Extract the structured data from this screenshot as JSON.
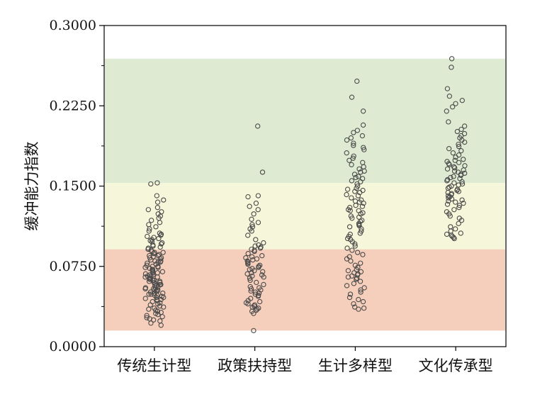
{
  "chart_data": {
    "type": "scatter",
    "title": "",
    "xlabel": "",
    "ylabel": "缓冲能力指数",
    "ylim": [
      0,
      0.3
    ],
    "y_ticks": [
      "0.0000",
      "0.0750",
      "0.1500",
      "0.2250",
      "0.3000"
    ],
    "y_tick_values": [
      0,
      0.075,
      0.15,
      0.225,
      0.3
    ],
    "categories": [
      "传统生计型",
      "政策扶持型",
      "生计多样型",
      "文化传承型"
    ],
    "bands": [
      {
        "from": 0.015,
        "to": 0.091,
        "color": "#f5cfbc"
      },
      {
        "from": 0.091,
        "to": 0.153,
        "color": "#f6f6da"
      },
      {
        "from": 0.153,
        "to": 0.269,
        "color": "#deebd2"
      }
    ],
    "marker_color": "#4a4a4a",
    "series": [
      {
        "category": "传统生计型",
        "values": [
          0.153,
          0.152,
          0.141,
          0.137,
          0.135,
          0.13,
          0.128,
          0.126,
          0.124,
          0.122,
          0.12,
          0.118,
          0.116,
          0.114,
          0.112,
          0.11,
          0.108,
          0.106,
          0.105,
          0.104,
          0.103,
          0.102,
          0.101,
          0.1,
          0.099,
          0.098,
          0.097,
          0.096,
          0.095,
          0.094,
          0.093,
          0.092,
          0.091,
          0.09,
          0.089,
          0.088,
          0.088,
          0.087,
          0.086,
          0.085,
          0.084,
          0.083,
          0.082,
          0.081,
          0.08,
          0.08,
          0.079,
          0.078,
          0.077,
          0.076,
          0.075,
          0.075,
          0.074,
          0.073,
          0.072,
          0.071,
          0.07,
          0.07,
          0.069,
          0.068,
          0.067,
          0.066,
          0.065,
          0.065,
          0.064,
          0.063,
          0.062,
          0.061,
          0.06,
          0.06,
          0.059,
          0.058,
          0.057,
          0.056,
          0.055,
          0.055,
          0.054,
          0.053,
          0.052,
          0.051,
          0.05,
          0.05,
          0.049,
          0.048,
          0.047,
          0.046,
          0.045,
          0.044,
          0.043,
          0.042,
          0.041,
          0.04,
          0.039,
          0.038,
          0.037,
          0.036,
          0.035,
          0.034,
          0.033,
          0.032,
          0.031,
          0.03,
          0.029,
          0.028,
          0.027,
          0.026,
          0.025,
          0.024,
          0.022,
          0.02,
          0.063,
          0.058,
          0.072,
          0.067,
          0.054,
          0.049,
          0.085,
          0.079,
          0.061,
          0.046,
          0.052,
          0.044,
          0.066,
          0.074,
          0.083,
          0.057,
          0.048,
          0.053,
          0.069,
          0.062
        ]
      },
      {
        "category": "政策扶持型",
        "values": [
          0.206,
          0.163,
          0.141,
          0.14,
          0.134,
          0.131,
          0.128,
          0.124,
          0.119,
          0.116,
          0.114,
          0.112,
          0.11,
          0.108,
          0.104,
          0.1,
          0.097,
          0.095,
          0.094,
          0.093,
          0.092,
          0.091,
          0.09,
          0.089,
          0.087,
          0.085,
          0.084,
          0.083,
          0.082,
          0.081,
          0.08,
          0.079,
          0.078,
          0.077,
          0.076,
          0.075,
          0.074,
          0.073,
          0.072,
          0.071,
          0.07,
          0.069,
          0.068,
          0.067,
          0.066,
          0.065,
          0.064,
          0.062,
          0.06,
          0.058,
          0.056,
          0.055,
          0.054,
          0.053,
          0.052,
          0.051,
          0.05,
          0.049,
          0.048,
          0.047,
          0.045,
          0.043,
          0.042,
          0.041,
          0.04,
          0.039,
          0.038,
          0.037,
          0.036,
          0.035,
          0.034,
          0.033,
          0.031,
          0.015
        ]
      },
      {
        "category": "生计多样型",
        "values": [
          0.248,
          0.233,
          0.22,
          0.207,
          0.202,
          0.2,
          0.197,
          0.195,
          0.193,
          0.19,
          0.188,
          0.186,
          0.184,
          0.181,
          0.178,
          0.176,
          0.174,
          0.172,
          0.17,
          0.168,
          0.166,
          0.164,
          0.163,
          0.161,
          0.159,
          0.157,
          0.155,
          0.154,
          0.152,
          0.15,
          0.148,
          0.147,
          0.146,
          0.144,
          0.142,
          0.141,
          0.139,
          0.137,
          0.135,
          0.134,
          0.132,
          0.131,
          0.13,
          0.128,
          0.127,
          0.125,
          0.124,
          0.122,
          0.12,
          0.118,
          0.117,
          0.115,
          0.114,
          0.112,
          0.11,
          0.108,
          0.106,
          0.105,
          0.103,
          0.101,
          0.1,
          0.098,
          0.096,
          0.094,
          0.092,
          0.09,
          0.088,
          0.086,
          0.084,
          0.082,
          0.08,
          0.078,
          0.076,
          0.074,
          0.072,
          0.071,
          0.07,
          0.069,
          0.068,
          0.067,
          0.066,
          0.065,
          0.064,
          0.063,
          0.061,
          0.059,
          0.057,
          0.055,
          0.053,
          0.051,
          0.049,
          0.046,
          0.044,
          0.042,
          0.04,
          0.037,
          0.036,
          0.035,
          0.145,
          0.127,
          0.158,
          0.136,
          0.121,
          0.113
        ]
      },
      {
        "category": "文化传承型",
        "values": [
          0.269,
          0.261,
          0.241,
          0.234,
          0.23,
          0.227,
          0.224,
          0.22,
          0.21,
          0.206,
          0.203,
          0.201,
          0.199,
          0.197,
          0.195,
          0.193,
          0.191,
          0.189,
          0.187,
          0.185,
          0.183,
          0.181,
          0.179,
          0.177,
          0.175,
          0.174,
          0.173,
          0.172,
          0.171,
          0.17,
          0.169,
          0.168,
          0.167,
          0.166,
          0.165,
          0.164,
          0.163,
          0.162,
          0.161,
          0.16,
          0.159,
          0.158,
          0.157,
          0.156,
          0.155,
          0.154,
          0.153,
          0.152,
          0.151,
          0.15,
          0.149,
          0.148,
          0.147,
          0.146,
          0.145,
          0.144,
          0.143,
          0.142,
          0.141,
          0.14,
          0.139,
          0.138,
          0.137,
          0.136,
          0.135,
          0.134,
          0.133,
          0.132,
          0.13,
          0.128,
          0.126,
          0.124,
          0.122,
          0.12,
          0.118,
          0.115,
          0.112,
          0.11,
          0.108,
          0.106,
          0.105,
          0.104,
          0.103,
          0.102,
          0.101
        ]
      }
    ]
  }
}
